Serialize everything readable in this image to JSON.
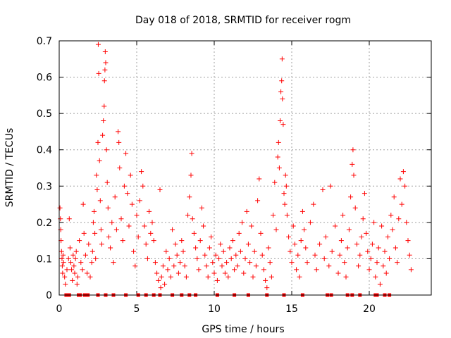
{
  "chart_data": {
    "type": "scatter",
    "title": "Day 018 of 2018, SRMTID for receiver rogm",
    "xlabel": "GPS time / hours",
    "ylabel": "SRMTID / TECUs",
    "xlim": [
      0,
      24
    ],
    "ylim": [
      0,
      0.7
    ],
    "xticks": [
      0,
      5,
      10,
      15,
      20
    ],
    "xtick_labels": [
      "0",
      "5",
      "10",
      "15",
      "20"
    ],
    "yticks": [
      0,
      0.1,
      0.2,
      0.3,
      0.4,
      0.5,
      0.6,
      0.7
    ],
    "ytick_labels": [
      "0",
      "0.1",
      "0.2",
      "0.3",
      "0.4",
      "0.5",
      "0.6",
      "0.7"
    ],
    "grid": true,
    "marker": "plus",
    "color": "#ff0000",
    "series": [
      {
        "name": "SRMTID",
        "points": [
          [
            0.05,
            0.24
          ],
          [
            0.08,
            0.21
          ],
          [
            0.1,
            0.18
          ],
          [
            0.12,
            0.15
          ],
          [
            0.15,
            0.12
          ],
          [
            0.18,
            0.1
          ],
          [
            0.2,
            0.08
          ],
          [
            0.22,
            0.06
          ],
          [
            0.25,
            0.11
          ],
          [
            0.28,
            0.09
          ],
          [
            0.35,
            0.05
          ],
          [
            0.4,
            0.03
          ],
          [
            0.5,
            0.07
          ],
          [
            0.6,
            0.1
          ],
          [
            0.65,
            0.21
          ],
          [
            0.7,
            0.13
          ],
          [
            0.75,
            0.09
          ],
          [
            0.8,
            0.07
          ],
          [
            0.85,
            0.04
          ],
          [
            0.9,
            0.11
          ],
          [
            0.95,
            0.08
          ],
          [
            1.0,
            0.06
          ],
          [
            1.05,
            0.1
          ],
          [
            1.1,
            0.12
          ],
          [
            1.15,
            0.03
          ],
          [
            1.2,
            0.05
          ],
          [
            1.3,
            0.15
          ],
          [
            1.4,
            0.09
          ],
          [
            1.5,
            0.07
          ],
          [
            1.55,
            0.25
          ],
          [
            1.6,
            0.17
          ],
          [
            1.7,
            0.11
          ],
          [
            1.8,
            0.06
          ],
          [
            1.9,
            0.14
          ],
          [
            2.0,
            0.05
          ],
          [
            2.1,
            0.09
          ],
          [
            2.15,
            0.12
          ],
          [
            2.2,
            0.2
          ],
          [
            2.25,
            0.23
          ],
          [
            2.3,
            0.17
          ],
          [
            2.35,
            0.1
          ],
          [
            2.4,
            0.33
          ],
          [
            2.45,
            0.29
          ],
          [
            2.5,
            0.42
          ],
          [
            2.52,
            0.69
          ],
          [
            2.55,
            0.61
          ],
          [
            2.6,
            0.37
          ],
          [
            2.65,
            0.26
          ],
          [
            2.7,
            0.18
          ],
          [
            2.75,
            0.14
          ],
          [
            2.8,
            0.44
          ],
          [
            2.85,
            0.48
          ],
          [
            2.9,
            0.52
          ],
          [
            2.92,
            0.59
          ],
          [
            2.95,
            0.62
          ],
          [
            2.97,
            0.67
          ],
          [
            3.0,
            0.64
          ],
          [
            3.05,
            0.4
          ],
          [
            3.1,
            0.31
          ],
          [
            3.15,
            0.24
          ],
          [
            3.2,
            0.16
          ],
          [
            3.3,
            0.13
          ],
          [
            3.4,
            0.2
          ],
          [
            3.5,
            0.09
          ],
          [
            3.6,
            0.27
          ],
          [
            3.7,
            0.18
          ],
          [
            3.8,
            0.45
          ],
          [
            3.85,
            0.42
          ],
          [
            3.9,
            0.35
          ],
          [
            4.0,
            0.21
          ],
          [
            4.1,
            0.15
          ],
          [
            4.2,
            0.3
          ],
          [
            4.3,
            0.39
          ],
          [
            4.4,
            0.28
          ],
          [
            4.5,
            0.19
          ],
          [
            4.6,
            0.33
          ],
          [
            4.7,
            0.25
          ],
          [
            4.8,
            0.12
          ],
          [
            4.9,
            0.08
          ],
          [
            5.0,
            0.22
          ],
          [
            5.1,
            0.16
          ],
          [
            5.2,
            0.26
          ],
          [
            5.3,
            0.34
          ],
          [
            5.4,
            0.3
          ],
          [
            5.5,
            0.19
          ],
          [
            5.6,
            0.14
          ],
          [
            5.7,
            0.1
          ],
          [
            5.8,
            0.23
          ],
          [
            5.9,
            0.17
          ],
          [
            6.0,
            0.2
          ],
          [
            6.1,
            0.15
          ],
          [
            6.2,
            0.09
          ],
          [
            6.3,
            0.06
          ],
          [
            6.4,
            0.04
          ],
          [
            6.5,
            0.29
          ],
          [
            6.55,
            0.02
          ],
          [
            6.6,
            0.05
          ],
          [
            6.7,
            0.08
          ],
          [
            6.8,
            0.03
          ],
          [
            6.9,
            0.12
          ],
          [
            7.0,
            0.07
          ],
          [
            7.1,
            0.1
          ],
          [
            7.2,
            0.05
          ],
          [
            7.3,
            0.18
          ],
          [
            7.4,
            0.08
          ],
          [
            7.5,
            0.14
          ],
          [
            7.6,
            0.11
          ],
          [
            7.7,
            0.06
          ],
          [
            7.8,
            0.09
          ],
          [
            7.9,
            0.15
          ],
          [
            8.0,
            0.12
          ],
          [
            8.1,
            0.08
          ],
          [
            8.2,
            0.05
          ],
          [
            8.3,
            0.22
          ],
          [
            8.4,
            0.27
          ],
          [
            8.5,
            0.33
          ],
          [
            8.55,
            0.39
          ],
          [
            8.6,
            0.21
          ],
          [
            8.7,
            0.17
          ],
          [
            8.8,
            0.13
          ],
          [
            8.9,
            0.1
          ],
          [
            9.0,
            0.07
          ],
          [
            9.1,
            0.15
          ],
          [
            9.2,
            0.24
          ],
          [
            9.3,
            0.19
          ],
          [
            9.4,
            0.11
          ],
          [
            9.5,
            0.08
          ],
          [
            9.6,
            0.05
          ],
          [
            9.7,
            0.13
          ],
          [
            9.8,
            0.16
          ],
          [
            9.9,
            0.09
          ],
          [
            10.0,
            0.06
          ],
          [
            10.1,
            0.11
          ],
          [
            10.2,
            0.04
          ],
          [
            10.3,
            0.1
          ],
          [
            10.4,
            0.14
          ],
          [
            10.5,
            0.08
          ],
          [
            10.6,
            0.12
          ],
          [
            10.7,
            0.06
          ],
          [
            10.8,
            0.09
          ],
          [
            10.9,
            0.05
          ],
          [
            11.0,
            0.13
          ],
          [
            11.1,
            0.1
          ],
          [
            11.2,
            0.15
          ],
          [
            11.3,
            0.07
          ],
          [
            11.4,
            0.11
          ],
          [
            11.5,
            0.08
          ],
          [
            11.6,
            0.17
          ],
          [
            11.7,
            0.12
          ],
          [
            11.8,
            0.2
          ],
          [
            11.9,
            0.06
          ],
          [
            12.0,
            0.1
          ],
          [
            12.1,
            0.23
          ],
          [
            12.2,
            0.14
          ],
          [
            12.3,
            0.09
          ],
          [
            12.4,
            0.19
          ],
          [
            12.5,
            0.05
          ],
          [
            12.6,
            0.12
          ],
          [
            12.7,
            0.08
          ],
          [
            12.8,
            0.26
          ],
          [
            12.9,
            0.32
          ],
          [
            13.0,
            0.17
          ],
          [
            13.1,
            0.11
          ],
          [
            13.2,
            0.07
          ],
          [
            13.3,
            0.04
          ],
          [
            13.4,
            0.02
          ],
          [
            13.5,
            0.13
          ],
          [
            13.6,
            0.09
          ],
          [
            13.7,
            0.05
          ],
          [
            13.8,
            0.22
          ],
          [
            13.9,
            0.31
          ],
          [
            14.0,
            0.18
          ],
          [
            14.1,
            0.38
          ],
          [
            14.15,
            0.42
          ],
          [
            14.2,
            0.35
          ],
          [
            14.25,
            0.48
          ],
          [
            14.3,
            0.56
          ],
          [
            14.35,
            0.59
          ],
          [
            14.38,
            0.65
          ],
          [
            14.4,
            0.54
          ],
          [
            14.45,
            0.47
          ],
          [
            14.5,
            0.28
          ],
          [
            14.55,
            0.25
          ],
          [
            14.6,
            0.33
          ],
          [
            14.65,
            0.3
          ],
          [
            14.7,
            0.22
          ],
          [
            14.8,
            0.16
          ],
          [
            14.9,
            0.12
          ],
          [
            15.0,
            0.09
          ],
          [
            15.1,
            0.19
          ],
          [
            15.2,
            0.14
          ],
          [
            15.3,
            0.07
          ],
          [
            15.4,
            0.11
          ],
          [
            15.5,
            0.05
          ],
          [
            15.6,
            0.15
          ],
          [
            15.7,
            0.23
          ],
          [
            15.8,
            0.18
          ],
          [
            15.9,
            0.13
          ],
          [
            16.0,
            0.09
          ],
          [
            16.2,
            0.2
          ],
          [
            16.4,
            0.25
          ],
          [
            16.5,
            0.11
          ],
          [
            16.6,
            0.07
          ],
          [
            16.8,
            0.14
          ],
          [
            17.0,
            0.29
          ],
          [
            17.1,
            0.1
          ],
          [
            17.2,
            0.16
          ],
          [
            17.4,
            0.08
          ],
          [
            17.5,
            0.3
          ],
          [
            17.6,
            0.12
          ],
          [
            17.8,
            0.19
          ],
          [
            18.0,
            0.06
          ],
          [
            18.1,
            0.11
          ],
          [
            18.2,
            0.15
          ],
          [
            18.3,
            0.22
          ],
          [
            18.4,
            0.09
          ],
          [
            18.5,
            0.05
          ],
          [
            18.6,
            0.13
          ],
          [
            18.7,
            0.18
          ],
          [
            18.8,
            0.27
          ],
          [
            18.9,
            0.36
          ],
          [
            18.95,
            0.4
          ],
          [
            19.0,
            0.33
          ],
          [
            19.1,
            0.24
          ],
          [
            19.2,
            0.14
          ],
          [
            19.3,
            0.08
          ],
          [
            19.4,
            0.11
          ],
          [
            19.5,
            0.16
          ],
          [
            19.6,
            0.21
          ],
          [
            19.7,
            0.28
          ],
          [
            19.8,
            0.17
          ],
          [
            19.9,
            0.12
          ],
          [
            20.0,
            0.07
          ],
          [
            20.1,
            0.1
          ],
          [
            20.2,
            0.14
          ],
          [
            20.3,
            0.2
          ],
          [
            20.4,
            0.05
          ],
          [
            20.5,
            0.09
          ],
          [
            20.6,
            0.13
          ],
          [
            20.7,
            0.03
          ],
          [
            20.8,
            0.19
          ],
          [
            20.9,
            0.08
          ],
          [
            21.0,
            0.12
          ],
          [
            21.1,
            0.06
          ],
          [
            21.2,
            0.16
          ],
          [
            21.3,
            0.1
          ],
          [
            21.4,
            0.22
          ],
          [
            21.5,
            0.18
          ],
          [
            21.6,
            0.27
          ],
          [
            21.7,
            0.13
          ],
          [
            21.8,
            0.09
          ],
          [
            21.9,
            0.21
          ],
          [
            22.0,
            0.32
          ],
          [
            22.1,
            0.25
          ],
          [
            22.2,
            0.34
          ],
          [
            22.3,
            0.3
          ],
          [
            22.4,
            0.2
          ],
          [
            22.5,
            0.15
          ],
          [
            22.6,
            0.11
          ],
          [
            22.7,
            0.07
          ]
        ]
      }
    ],
    "zero_markers": [
      0.45,
      0.55,
      0.65,
      1.25,
      1.35,
      1.65,
      1.75,
      1.85,
      2.5,
      3.0,
      3.5,
      4.3,
      5.1,
      5.6,
      6.1,
      6.5,
      7.3,
      7.9,
      8.4,
      8.8,
      10.2,
      11.3,
      12.2,
      13.4,
      14.5,
      15.7,
      17.3,
      17.55,
      18.6,
      18.9,
      19.4,
      20.4,
      20.5,
      21.0,
      21.3
    ]
  }
}
